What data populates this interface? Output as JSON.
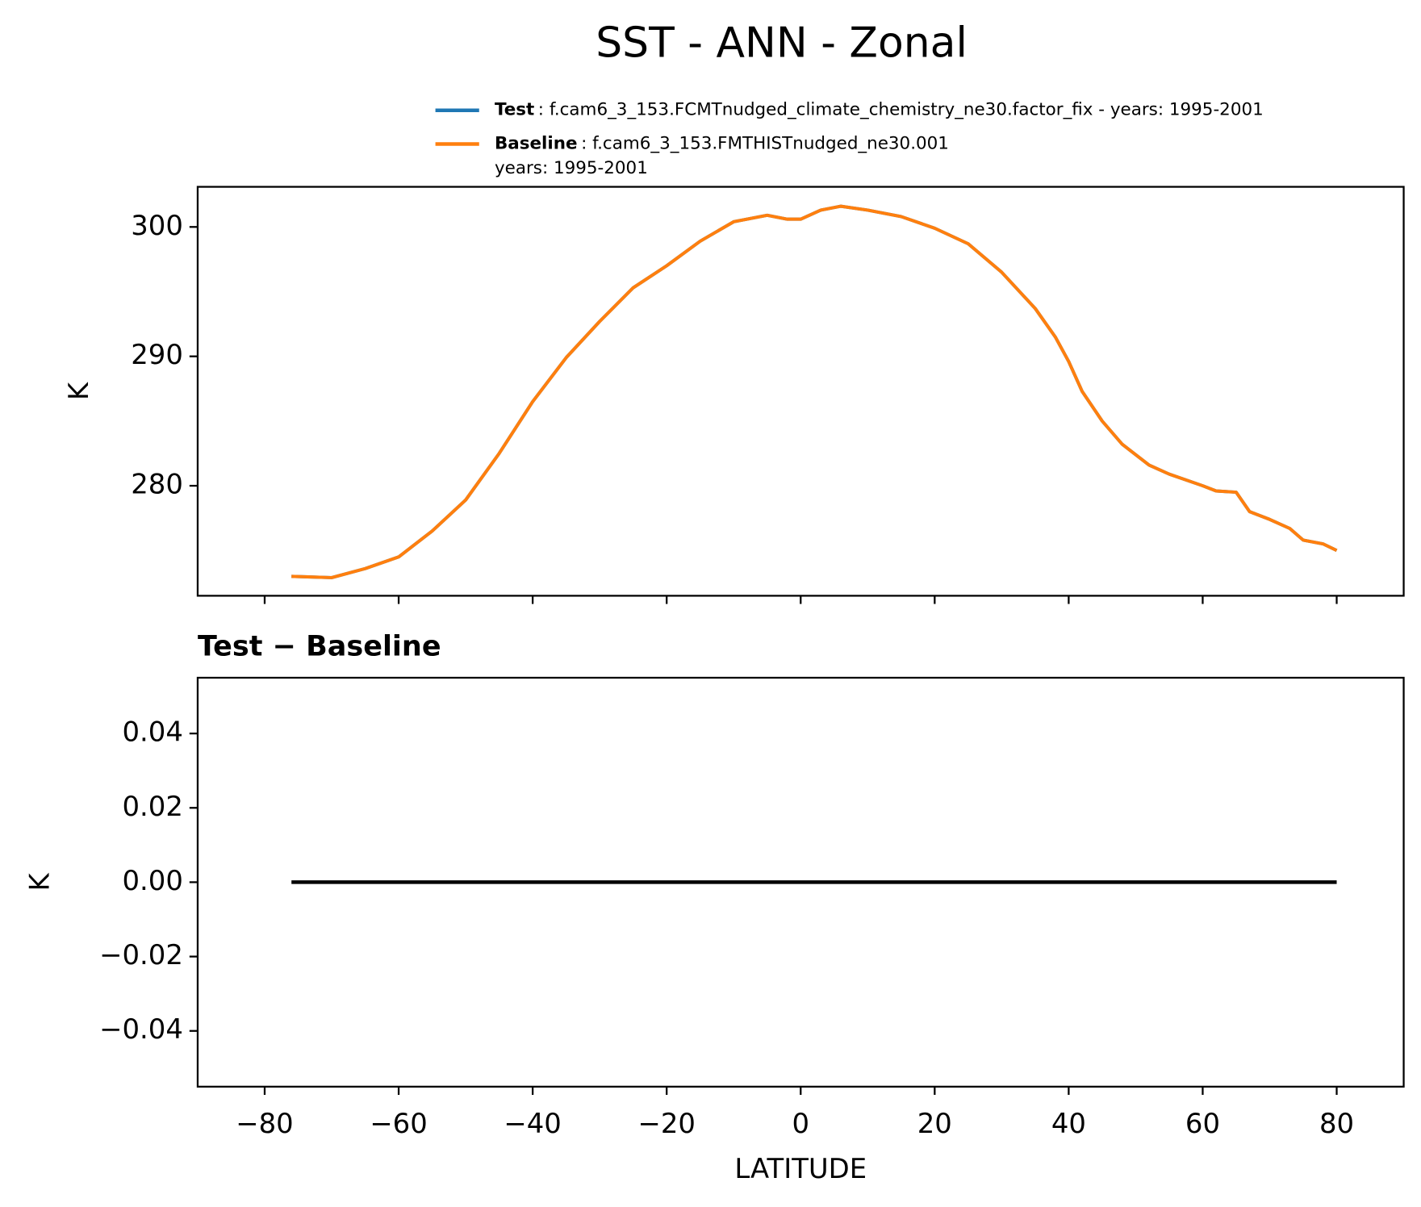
{
  "chart_data": [
    {
      "type": "line",
      "title": "SST - ANN - Zonal",
      "ylabel": "K",
      "x": [
        -76,
        -70,
        -65,
        -60,
        -55,
        -50,
        -45,
        -40,
        -35,
        -30,
        -25,
        -20,
        -15,
        -10,
        -5,
        -2,
        0,
        3,
        6,
        10,
        15,
        20,
        25,
        30,
        35,
        38,
        40,
        42,
        45,
        48,
        52,
        55,
        60,
        62,
        65,
        67,
        70,
        73,
        75,
        78,
        80
      ],
      "series": [
        {
          "name": "Test",
          "legend_text": [
            ": f.cam6_3_153.FCMTnudged_climate_chemistry_ne30.factor_fix - years: 1995-2001"
          ],
          "color": "#1f77b4",
          "values": [
            273.0,
            272.9,
            273.6,
            274.5,
            276.5,
            278.9,
            282.5,
            286.5,
            289.9,
            292.7,
            295.3,
            297.0,
            298.9,
            300.4,
            300.9,
            300.6,
            300.6,
            301.3,
            301.6,
            301.3,
            300.8,
            299.9,
            298.7,
            296.5,
            293.7,
            291.5,
            289.6,
            287.3,
            285.0,
            283.2,
            281.6,
            280.9,
            280.0,
            279.6,
            279.5,
            278.0,
            277.4,
            276.7,
            275.8,
            275.5,
            275.0
          ]
        },
        {
          "name": "Baseline",
          "legend_text": [
            ": f.cam6_3_153.FMTHISTnudged_ne30.001",
            "years: 1995-2001"
          ],
          "color": "#ff7f0e",
          "values": [
            273.0,
            272.9,
            273.6,
            274.5,
            276.5,
            278.9,
            282.5,
            286.5,
            289.9,
            292.7,
            295.3,
            297.0,
            298.9,
            300.4,
            300.9,
            300.6,
            300.6,
            301.3,
            301.6,
            301.3,
            300.8,
            299.9,
            298.7,
            296.5,
            293.7,
            291.5,
            289.6,
            287.3,
            285.0,
            283.2,
            281.6,
            280.9,
            280.0,
            279.6,
            279.5,
            278.0,
            277.4,
            276.7,
            275.8,
            275.5,
            275.0
          ]
        }
      ],
      "xlim": [
        -90,
        90
      ],
      "xticks": [
        -80,
        -60,
        -40,
        -20,
        0,
        20,
        40,
        60,
        80
      ],
      "ylim": [
        271.5,
        303.1
      ],
      "yticks": [
        280,
        290,
        300
      ],
      "legend": true
    },
    {
      "type": "line",
      "title": "Test − Baseline",
      "xlabel": "LATITUDE",
      "ylabel": "K",
      "x": [
        -76,
        80
      ],
      "values": [
        0,
        0
      ],
      "color": "#000000",
      "xlim": [
        -90,
        90
      ],
      "xticks": [
        {
          "value": -80,
          "label": "−80"
        },
        {
          "value": -60,
          "label": "−60"
        },
        {
          "value": -40,
          "label": "−40"
        },
        {
          "value": -20,
          "label": "−20"
        },
        0,
        20,
        40,
        60,
        80
      ],
      "ylim": [
        -0.055,
        0.055
      ],
      "yticks": [
        {
          "value": -0.04,
          "label": "−0.04"
        },
        {
          "value": -0.02,
          "label": "−0.02"
        },
        {
          "value": 0,
          "label": "0.00"
        },
        0.02,
        0.04
      ]
    }
  ]
}
